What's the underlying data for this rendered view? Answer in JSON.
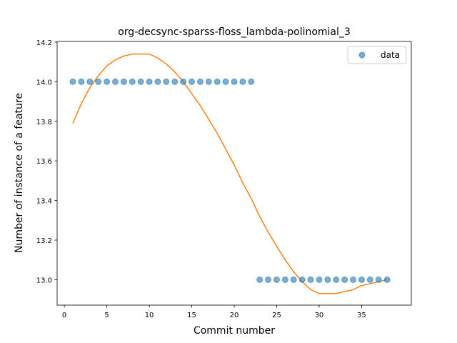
{
  "chart_data": {
    "type": "scatter",
    "title": "org-decsync-sparss-floss_lambda-polinomial_3",
    "xlabel": "Commit number",
    "ylabel": "Number of instance of a feature",
    "xlim": [
      -0.85,
      40.85
    ],
    "ylim": [
      12.8715,
      14.2035
    ],
    "xticks": [
      0,
      5,
      10,
      15,
      20,
      25,
      30,
      35
    ],
    "yticks": [
      13.0,
      13.2,
      13.4,
      13.6,
      13.8,
      14.0,
      14.2
    ],
    "grid": false,
    "legend": {
      "placement": "top-right",
      "entries": [
        "data"
      ]
    },
    "colors": {
      "data": "#1f77b4",
      "fit": "#ff7f0e"
    },
    "series": [
      {
        "name": "data",
        "kind": "scatter",
        "x": [
          1,
          2,
          3,
          4,
          5,
          6,
          7,
          8,
          9,
          10,
          11,
          12,
          13,
          14,
          15,
          16,
          17,
          18,
          19,
          20,
          21,
          22,
          23,
          24,
          25,
          26,
          27,
          28,
          29,
          30,
          31,
          32,
          33,
          34,
          35,
          36,
          37,
          38
        ],
        "y": [
          14,
          14,
          14,
          14,
          14,
          14,
          14,
          14,
          14,
          14,
          14,
          14,
          14,
          14,
          14,
          14,
          14,
          14,
          14,
          14,
          14,
          14,
          13,
          13,
          13,
          13,
          13,
          13,
          13,
          13,
          13,
          13,
          13,
          13,
          13,
          13,
          13,
          13
        ]
      },
      {
        "kind": "line",
        "x": [
          1,
          2,
          3,
          4,
          5,
          6,
          7,
          8,
          9,
          10,
          11,
          12,
          13,
          14,
          15,
          16,
          17,
          18,
          19,
          20,
          21,
          22,
          23,
          24,
          25,
          26,
          27,
          28,
          29,
          30,
          31,
          32,
          33,
          34,
          35,
          36,
          37,
          38
        ],
        "y": [
          13.79,
          13.89,
          13.97,
          14.03,
          14.08,
          14.11,
          14.13,
          14.14,
          14.14,
          14.14,
          14.12,
          14.09,
          14.05,
          14.0,
          13.94,
          13.88,
          13.81,
          13.74,
          13.66,
          13.58,
          13.49,
          13.41,
          13.32,
          13.24,
          13.17,
          13.1,
          13.04,
          12.99,
          12.95,
          12.93,
          12.93,
          12.93,
          12.94,
          12.95,
          12.97,
          12.98,
          12.99,
          13.0
        ]
      }
    ]
  }
}
